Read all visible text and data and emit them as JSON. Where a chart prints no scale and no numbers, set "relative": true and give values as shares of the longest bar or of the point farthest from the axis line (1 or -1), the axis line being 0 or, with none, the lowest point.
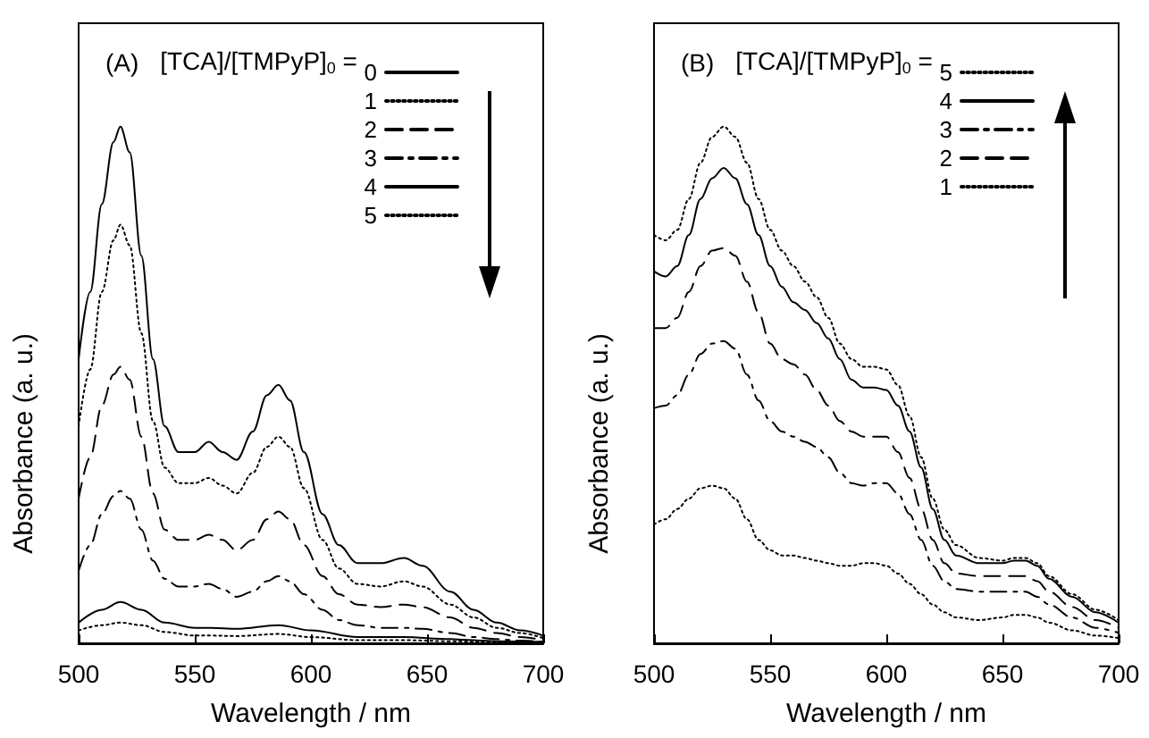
{
  "chart_data": [
    {
      "type": "line",
      "title": "(A)",
      "xlabel": "Wavelength / nm",
      "ylabel": "Absorbance (a. u.)",
      "legend_title": "[TCA]/[TMPyP]$_{0}$ =",
      "relative": true,
      "xlim": [
        500,
        700
      ],
      "xticks": [
        500,
        550,
        600,
        650,
        700
      ],
      "grid": false,
      "legend": "top right",
      "marker": "none",
      "x": [
        500,
        505,
        510,
        515,
        518,
        522,
        527,
        532,
        537,
        543,
        550,
        556,
        562,
        568,
        575,
        581,
        586,
        591,
        597,
        605,
        612,
        620,
        630,
        640,
        648,
        660,
        670,
        680,
        690,
        700
      ],
      "series": [
        {
          "name": "0",
          "color": "#000000",
          "line_style": "solid",
          "values": [
            0.55,
            0.68,
            0.85,
            0.97,
            1.0,
            0.95,
            0.75,
            0.55,
            0.42,
            0.37,
            0.37,
            0.39,
            0.37,
            0.355,
            0.41,
            0.48,
            0.5,
            0.47,
            0.37,
            0.25,
            0.19,
            0.155,
            0.155,
            0.165,
            0.15,
            0.1,
            0.065,
            0.04,
            0.025,
            0.015
          ]
        },
        {
          "name": "1",
          "color": "#000000",
          "line_style": "dotted",
          "values": [
            0.42,
            0.53,
            0.68,
            0.78,
            0.81,
            0.77,
            0.6,
            0.43,
            0.34,
            0.31,
            0.31,
            0.32,
            0.305,
            0.29,
            0.33,
            0.38,
            0.4,
            0.38,
            0.3,
            0.2,
            0.145,
            0.115,
            0.11,
            0.12,
            0.11,
            0.075,
            0.05,
            0.03,
            0.02,
            0.01
          ]
        },
        {
          "name": "2",
          "color": "#000000",
          "line_style": "dashed",
          "values": [
            0.28,
            0.36,
            0.46,
            0.52,
            0.535,
            0.51,
            0.4,
            0.29,
            0.22,
            0.2,
            0.2,
            0.21,
            0.2,
            0.18,
            0.2,
            0.24,
            0.255,
            0.24,
            0.19,
            0.13,
            0.095,
            0.075,
            0.07,
            0.075,
            0.07,
            0.05,
            0.03,
            0.02,
            0.012,
            0.006
          ]
        },
        {
          "name": "3",
          "color": "#000000",
          "line_style": "dashdot",
          "values": [
            0.14,
            0.19,
            0.25,
            0.285,
            0.295,
            0.28,
            0.22,
            0.16,
            0.125,
            0.11,
            0.11,
            0.115,
            0.105,
            0.09,
            0.1,
            0.12,
            0.13,
            0.12,
            0.095,
            0.065,
            0.045,
            0.035,
            0.03,
            0.03,
            0.028,
            0.02,
            0.012,
            0.008,
            0.005,
            0.003
          ]
        },
        {
          "name": "4",
          "color": "#000000",
          "line_style": "solid",
          "x": [
            500,
            510,
            518,
            527,
            537,
            550,
            557,
            568,
            586,
            600,
            620,
            640,
            660,
            680,
            700
          ],
          "values": [
            0.04,
            0.065,
            0.08,
            0.065,
            0.04,
            0.03,
            0.03,
            0.028,
            0.035,
            0.025,
            0.012,
            0.012,
            0.008,
            0.004,
            0.003
          ]
        },
        {
          "name": "5",
          "color": "#000000",
          "line_style": "dotted",
          "x": [
            500,
            510,
            518,
            527,
            537,
            550,
            557,
            568,
            586,
            600,
            620,
            640,
            660,
            680,
            700
          ],
          "values": [
            0.025,
            0.035,
            0.04,
            0.035,
            0.022,
            0.015,
            0.015,
            0.014,
            0.018,
            0.012,
            0.006,
            0.006,
            0.004,
            0.002,
            0.001
          ]
        }
      ]
    },
    {
      "type": "line",
      "title": "(B)",
      "xlabel": "Wavelength / nm",
      "ylabel": "Absorbance (a. u.)",
      "legend_title": "[TCA]/[TMPyP]$_{0}$ =",
      "relative": true,
      "xlim": [
        500,
        700
      ],
      "xticks": [
        500,
        550,
        600,
        650,
        700
      ],
      "grid": false,
      "legend": "top right",
      "marker": "none",
      "x": [
        500,
        505,
        510,
        515,
        520,
        525,
        530,
        535,
        540,
        545,
        550,
        555,
        560,
        565,
        570,
        575,
        580,
        585,
        590,
        595,
        600,
        605,
        610,
        615,
        620,
        625,
        630,
        640,
        650,
        655,
        660,
        665,
        670,
        680,
        690,
        700
      ],
      "series": [
        {
          "name": "5",
          "color": "#000000",
          "line_style": "dotted",
          "values": [
            0.79,
            0.78,
            0.8,
            0.86,
            0.93,
            0.98,
            1.0,
            0.98,
            0.93,
            0.86,
            0.8,
            0.76,
            0.73,
            0.7,
            0.67,
            0.63,
            0.58,
            0.55,
            0.535,
            0.535,
            0.53,
            0.5,
            0.44,
            0.36,
            0.28,
            0.22,
            0.19,
            0.165,
            0.16,
            0.165,
            0.165,
            0.155,
            0.13,
            0.095,
            0.065,
            0.045
          ]
        },
        {
          "name": "4",
          "color": "#000000",
          "line_style": "solid",
          "values": [
            0.72,
            0.71,
            0.73,
            0.79,
            0.86,
            0.9,
            0.92,
            0.9,
            0.85,
            0.79,
            0.73,
            0.69,
            0.66,
            0.645,
            0.62,
            0.59,
            0.55,
            0.51,
            0.495,
            0.495,
            0.49,
            0.46,
            0.41,
            0.34,
            0.26,
            0.2,
            0.17,
            0.155,
            0.155,
            0.16,
            0.16,
            0.15,
            0.125,
            0.09,
            0.06,
            0.04
          ]
        },
        {
          "name": "3",
          "color": "#000000",
          "line_style": "dashdot",
          "values": [
            0.455,
            0.46,
            0.48,
            0.52,
            0.56,
            0.58,
            0.585,
            0.57,
            0.52,
            0.47,
            0.43,
            0.41,
            0.4,
            0.39,
            0.38,
            0.36,
            0.33,
            0.31,
            0.305,
            0.31,
            0.31,
            0.29,
            0.25,
            0.2,
            0.15,
            0.12,
            0.105,
            0.1,
            0.1,
            0.1,
            0.1,
            0.09,
            0.075,
            0.05,
            0.03,
            0.02
          ]
        },
        {
          "name": "2",
          "color": "#000000",
          "line_style": "dashed",
          "values": [
            0.61,
            0.61,
            0.63,
            0.68,
            0.73,
            0.76,
            0.765,
            0.75,
            0.7,
            0.64,
            0.58,
            0.55,
            0.54,
            0.52,
            0.49,
            0.46,
            0.43,
            0.41,
            0.4,
            0.4,
            0.4,
            0.37,
            0.32,
            0.26,
            0.2,
            0.155,
            0.135,
            0.13,
            0.13,
            0.13,
            0.13,
            0.12,
            0.1,
            0.07,
            0.045,
            0.03
          ]
        },
        {
          "name": "1",
          "color": "#000000",
          "line_style": "dotted",
          "values": [
            0.23,
            0.24,
            0.26,
            0.28,
            0.3,
            0.305,
            0.3,
            0.28,
            0.24,
            0.2,
            0.18,
            0.17,
            0.17,
            0.165,
            0.16,
            0.155,
            0.15,
            0.15,
            0.155,
            0.155,
            0.15,
            0.135,
            0.115,
            0.095,
            0.075,
            0.06,
            0.05,
            0.045,
            0.05,
            0.055,
            0.055,
            0.05,
            0.04,
            0.025,
            0.015,
            0.01
          ]
        }
      ]
    }
  ]
}
